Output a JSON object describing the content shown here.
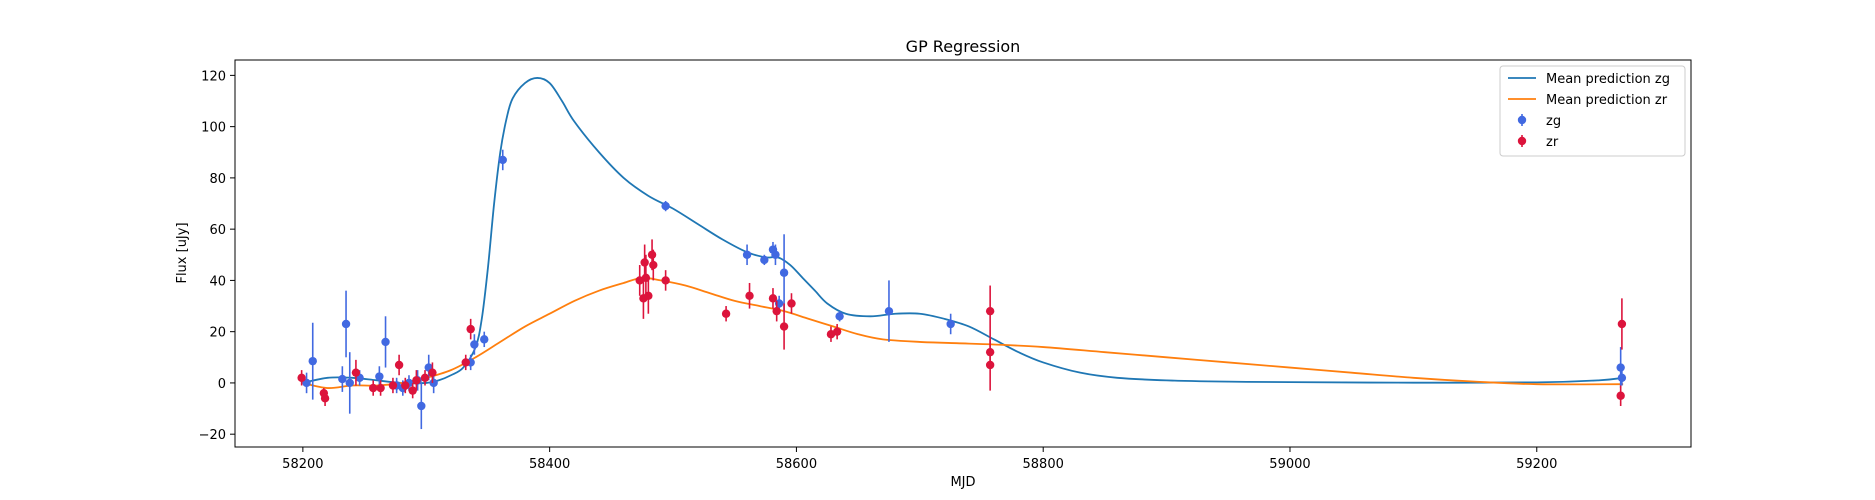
{
  "chart_data": {
    "type": "scatter",
    "title": "GP Regression",
    "xlabel": "MJD",
    "ylabel": "Flux [uJy]",
    "xlim": [
      58145,
      59325
    ],
    "ylim": [
      -25,
      126
    ],
    "xticks": [
      58200,
      58400,
      58600,
      58800,
      59000,
      59200
    ],
    "yticks": [
      -20,
      0,
      20,
      40,
      60,
      80,
      100,
      120
    ],
    "legend_position": "top-right",
    "grid": false,
    "colors": {
      "zg_line": "#1f77b4",
      "zr_line": "#ff7f0e",
      "zg_points": "#4169e1",
      "zr_points": "#dc143c"
    },
    "lines": [
      {
        "name": "Mean prediction zg",
        "color": "#1f77b4",
        "x": [
          58200,
          58220,
          58240,
          58260,
          58280,
          58300,
          58310,
          58320,
          58330,
          58340,
          58345,
          58350,
          58355,
          58360,
          58365,
          58370,
          58380,
          58390,
          58400,
          58410,
          58420,
          58440,
          58460,
          58480,
          58500,
          58520,
          58540,
          58560,
          58575,
          58585,
          58595,
          58605,
          58615,
          58625,
          58640,
          58660,
          58680,
          58700,
          58720,
          58740,
          58760,
          58780,
          58800,
          58830,
          58860,
          58900,
          58950,
          59000,
          59100,
          59200,
          59250,
          59270
        ],
        "y": [
          0,
          2,
          2,
          1,
          0,
          0,
          1,
          3,
          6,
          14,
          25,
          45,
          70,
          90,
          103,
          111,
          117,
          119,
          117,
          110,
          102,
          90,
          80,
          73,
          68,
          62,
          56,
          51,
          49,
          49,
          46,
          41,
          36,
          31,
          27,
          26,
          27,
          27,
          25,
          22,
          17,
          12,
          8,
          4,
          2,
          1,
          0.5,
          0.3,
          0.1,
          0.2,
          1,
          2
        ]
      },
      {
        "name": "Mean prediction zr",
        "color": "#ff7f0e",
        "x": [
          58200,
          58220,
          58240,
          58260,
          58280,
          58300,
          58320,
          58340,
          58360,
          58380,
          58400,
          58420,
          58440,
          58460,
          58475,
          58490,
          58510,
          58530,
          58550,
          58570,
          58590,
          58610,
          58630,
          58650,
          58670,
          58700,
          58730,
          58760,
          58800,
          58850,
          58900,
          58950,
          59000,
          59050,
          59100,
          59150,
          59200,
          59270
        ],
        "y": [
          0,
          -2,
          -1,
          -1,
          0,
          2,
          5,
          10,
          16,
          22,
          27,
          32,
          36,
          39,
          41,
          40,
          38,
          35,
          32,
          30,
          28,
          25,
          22,
          19,
          17,
          16,
          15.5,
          15,
          14,
          12,
          10,
          8,
          6,
          4,
          2,
          0.5,
          -0.5,
          -0.5
        ]
      }
    ],
    "series": [
      {
        "name": "zg",
        "color": "#4169e1",
        "x": [
          58203,
          58208,
          58232,
          58235,
          58238,
          58246,
          58262,
          58267,
          58276,
          58281,
          58286,
          58293,
          58296,
          58302,
          58306,
          58336,
          58339,
          58347,
          58362,
          58494,
          58560,
          58574,
          58581,
          58583,
          58586,
          58590,
          58635,
          58675,
          58725,
          59268,
          59269
        ],
        "y": [
          0,
          8.5,
          1.5,
          23,
          0,
          2,
          2.5,
          16,
          -1,
          -2,
          0,
          1,
          -9,
          6,
          0,
          8,
          15,
          17,
          87,
          69,
          50,
          48,
          52,
          50,
          31,
          43,
          26,
          28,
          23,
          6,
          2
        ],
        "err": [
          4,
          15,
          5,
          13,
          12,
          3,
          4,
          10,
          3,
          3,
          3,
          4,
          9,
          5,
          4,
          3,
          4,
          3,
          4,
          2,
          4,
          2,
          3,
          4,
          3,
          15,
          2,
          12,
          4,
          8,
          3
        ]
      },
      {
        "name": "zr",
        "color": "#dc143c",
        "x": [
          58199,
          58217,
          58218,
          58243,
          58257,
          58263,
          58273,
          58278,
          58283,
          58289,
          58292,
          58299,
          58305,
          58332,
          58336,
          58473,
          58476,
          58477,
          58478,
          58480,
          58483,
          58484,
          58494,
          58543,
          58562,
          58581,
          58584,
          58590,
          58596,
          58628,
          58633,
          58757,
          58757,
          58757,
          59268,
          59269
        ],
        "y": [
          2,
          -4,
          -6,
          4,
          -2,
          -2,
          -1,
          7,
          -1,
          -3,
          1,
          2,
          4,
          8,
          21,
          40,
          33,
          47,
          41,
          34,
          50,
          46,
          40,
          27,
          34,
          33,
          28,
          22,
          31,
          19,
          20,
          28,
          12,
          7,
          -5,
          23
        ],
        "err": [
          3,
          2,
          3,
          5,
          3,
          3,
          3,
          4,
          3,
          3,
          4,
          3,
          4,
          3,
          4,
          6,
          8,
          7,
          9,
          7,
          6,
          6,
          4,
          3,
          5,
          4,
          4,
          9,
          4,
          3,
          3,
          10,
          6,
          10,
          4,
          10
        ]
      }
    ]
  }
}
